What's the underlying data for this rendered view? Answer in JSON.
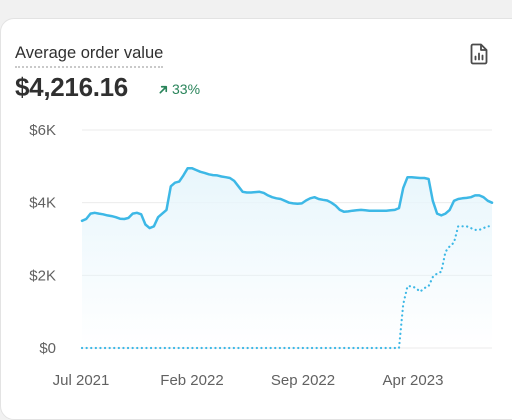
{
  "card": {
    "title": "Average order value",
    "value": "$4,216.16",
    "change": "33%",
    "report_icon": "report-icon",
    "change_icon": "arrow-up-right-icon"
  },
  "colors": {
    "current_series": "#3db8e6",
    "area_fill": "#e8f6fc",
    "change_positive": "#29845a",
    "gridline": "#ebebeb"
  },
  "chart_data": {
    "type": "line",
    "y_ticks": [
      "$6K",
      "$4K",
      "$2K",
      "$0"
    ],
    "x_ticks": [
      "Jul 2021",
      "Feb 2022",
      "Sep 2022",
      "Apr 2023"
    ],
    "ylim": [
      0,
      6000
    ],
    "grid": true,
    "series": [
      {
        "style": "solid",
        "values": [
          3500,
          3550,
          3700,
          3720,
          3700,
          3680,
          3650,
          3630,
          3600,
          3560,
          3550,
          3580,
          3700,
          3720,
          3680,
          3400,
          3300,
          3350,
          3600,
          3700,
          3800,
          4450,
          4550,
          4580,
          4750,
          4950,
          4950,
          4900,
          4850,
          4820,
          4780,
          4760,
          4750,
          4720,
          4700,
          4680,
          4600,
          4450,
          4300,
          4280,
          4280,
          4290,
          4300,
          4270,
          4200,
          4150,
          4120,
          4100,
          4050,
          4000,
          3980,
          3970,
          3980,
          4060,
          4120,
          4150,
          4100,
          4080,
          4060,
          4000,
          3920,
          3800,
          3750,
          3760,
          3780,
          3790,
          3800,
          3790,
          3780,
          3780,
          3780,
          3780,
          3780,
          3790,
          3800,
          3850,
          4400,
          4700,
          4700,
          4690,
          4680,
          4680,
          4650,
          4050,
          3700,
          3650,
          3700,
          3800,
          4050,
          4100,
          4120,
          4130,
          4150,
          4200,
          4200,
          4150,
          4050,
          4000
        ]
      },
      {
        "style": "dotted",
        "values": [
          0,
          0,
          0,
          0,
          0,
          0,
          0,
          0,
          0,
          0,
          0,
          0,
          0,
          0,
          0,
          0,
          0,
          0,
          0,
          0,
          0,
          0,
          0,
          0,
          0,
          0,
          0,
          0,
          0,
          0,
          0,
          0,
          0,
          0,
          0,
          0,
          0,
          0,
          0,
          0,
          0,
          0,
          0,
          0,
          0,
          0,
          0,
          0,
          0,
          0,
          0,
          0,
          0,
          0,
          0,
          0,
          0,
          0,
          0,
          0,
          0,
          0,
          0,
          0,
          0,
          0,
          0,
          0,
          0,
          0,
          0,
          0,
          0,
          0,
          0,
          0,
          1200,
          1700,
          1700,
          1650,
          1550,
          1650,
          1700,
          1950,
          2050,
          2100,
          2650,
          2800,
          2900,
          3350,
          3350,
          3350,
          3300,
          3250,
          3250,
          3300,
          3350,
          3350
        ]
      }
    ]
  }
}
